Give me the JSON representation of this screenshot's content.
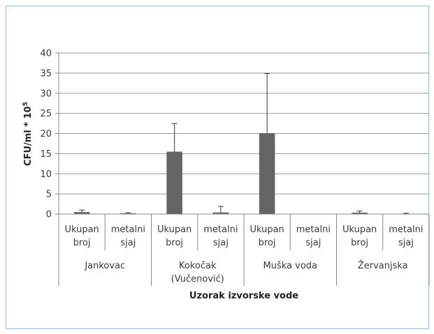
{
  "chart_data": {
    "type": "bar",
    "xlabel": "Uzorak izvorske vode",
    "ylabel_main": "CFU/ml * 10",
    "ylabel_exp": "5",
    "ylim": [
      0,
      40
    ],
    "yticks": [
      "0",
      "5",
      "10",
      "15",
      "20",
      "25",
      "30",
      "35",
      "40"
    ],
    "grid": true,
    "bar_color": "#646464",
    "groups": [
      {
        "label": [
          "Jankovac"
        ],
        "categories": [
          {
            "label": [
              "Ukupan",
              "broj"
            ],
            "value": 0.5,
            "error": 0.5
          },
          {
            "label": [
              "metalni",
              "sjaj"
            ],
            "value": 0.2,
            "error": 0.15
          }
        ]
      },
      {
        "label": [
          "Kokočak",
          "(Vučenović)"
        ],
        "categories": [
          {
            "label": [
              "Ukupan",
              "broj"
            ],
            "value": 15.5,
            "error": 7.0
          },
          {
            "label": [
              "metalni",
              "sjaj"
            ],
            "value": 0.4,
            "error": 1.5
          }
        ]
      },
      {
        "label": [
          "Muška voda"
        ],
        "categories": [
          {
            "label": [
              "Ukupan",
              "broj"
            ],
            "value": 20.1,
            "error": 14.8
          },
          {
            "label": [
              "metalni",
              "sjaj"
            ],
            "value": 0,
            "error": 0
          }
        ]
      },
      {
        "label": [
          "Žervanjska"
        ],
        "categories": [
          {
            "label": [
              "Ukupan",
              "broj"
            ],
            "value": 0.35,
            "error": 0.4
          },
          {
            "label": [
              "metalni",
              "sjaj"
            ],
            "value": 0.1,
            "error": 0.1
          }
        ]
      }
    ]
  }
}
